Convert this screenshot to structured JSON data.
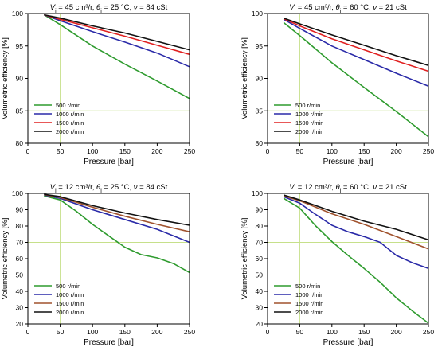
{
  "chart_data": [
    {
      "type": "line",
      "title_parts": {
        "v": "V",
        "v_sub": "i",
        "eq1": " = 45 cm³/r,  ",
        "theta": "θ",
        "theta_sub": "i",
        "eq2": " = 25 °C,  ",
        "nu": "ν",
        "eq3": " = 84 cSt"
      },
      "xlabel": "Pressure [bar]",
      "ylabel": "Volumetric efficiency [%]",
      "xlim": [
        0,
        250
      ],
      "ylim": [
        80,
        100
      ],
      "xticks": [
        0,
        50,
        100,
        150,
        200,
        250
      ],
      "yticks": [
        80,
        85,
        90,
        95,
        100
      ],
      "ref_lines": {
        "x": 50,
        "y": 85
      },
      "legend_position": "bottom-left",
      "series": [
        {
          "name": "500 r/min",
          "color": "#2e9b2e",
          "x": [
            25,
            50,
            100,
            150,
            200,
            250
          ],
          "y": [
            99.8,
            98.3,
            95.0,
            92.2,
            89.6,
            86.9
          ]
        },
        {
          "name": "1000 r/min",
          "color": "#2a2aa8",
          "x": [
            25,
            50,
            100,
            150,
            200,
            250
          ],
          "y": [
            99.8,
            98.9,
            97.2,
            95.6,
            93.9,
            91.8
          ]
        },
        {
          "name": "1500 r/min",
          "color": "#e02020",
          "x": [
            25,
            50,
            100,
            150,
            200,
            250
          ],
          "y": [
            99.8,
            99.1,
            97.8,
            96.5,
            95.1,
            93.7
          ]
        },
        {
          "name": "2000 r/min",
          "color": "#111111",
          "x": [
            25,
            50,
            100,
            150,
            200,
            250
          ],
          "y": [
            99.8,
            99.3,
            98.1,
            97.0,
            95.7,
            94.4
          ]
        }
      ]
    },
    {
      "type": "line",
      "title_parts": {
        "v": "V",
        "v_sub": "i",
        "eq1": " = 45 cm³/r,  ",
        "theta": "θ",
        "theta_sub": "i",
        "eq2": " = 60 °C,  ",
        "nu": "ν",
        "eq3": " = 21 cSt"
      },
      "xlabel": "Pressure [bar]",
      "ylabel": "Volumetric efficiency [%]",
      "xlim": [
        0,
        250
      ],
      "ylim": [
        80,
        100
      ],
      "xticks": [
        0,
        50,
        100,
        150,
        200,
        250
      ],
      "yticks": [
        80,
        85,
        90,
        95,
        100
      ],
      "ref_lines": {
        "x": 50,
        "y": 85
      },
      "legend_position": "bottom-left",
      "series": [
        {
          "name": "500 r/min",
          "color": "#2e9b2e",
          "x": [
            25,
            50,
            100,
            150,
            200,
            250
          ],
          "y": [
            98.6,
            96.6,
            92.4,
            88.6,
            84.9,
            81.0
          ]
        },
        {
          "name": "1000 r/min",
          "color": "#2a2aa8",
          "x": [
            25,
            50,
            100,
            150,
            200,
            250
          ],
          "y": [
            99.1,
            97.7,
            95.0,
            92.9,
            90.8,
            88.8
          ]
        },
        {
          "name": "1500 r/min",
          "color": "#e02020",
          "x": [
            25,
            50,
            100,
            150,
            200,
            250
          ],
          "y": [
            99.2,
            98.1,
            96.1,
            94.4,
            92.7,
            91.1
          ]
        },
        {
          "name": "2000 r/min",
          "color": "#111111",
          "x": [
            25,
            50,
            100,
            150,
            200,
            250
          ],
          "y": [
            99.3,
            98.4,
            96.7,
            95.1,
            93.5,
            92.0
          ]
        }
      ]
    },
    {
      "type": "line",
      "title_parts": {
        "v": "V",
        "v_sub": "i",
        "eq1": " = 12 cm³/r,  ",
        "theta": "θ",
        "theta_sub": "i",
        "eq2": " = 25 °C,  ",
        "nu": "ν",
        "eq3": " = 84 cSt"
      },
      "xlabel": "Pressure [bar]",
      "ylabel": "Volumetric efficiency [%]",
      "xlim": [
        0,
        250
      ],
      "ylim": [
        20,
        100
      ],
      "xticks": [
        0,
        50,
        100,
        150,
        200,
        250
      ],
      "yticks": [
        20,
        30,
        40,
        50,
        60,
        70,
        80,
        90,
        100
      ],
      "ref_lines": {
        "x": 50,
        "y": 70
      },
      "legend_position": "bottom-left",
      "series": [
        {
          "name": "500 r/min",
          "color": "#2e9b2e",
          "x": [
            25,
            50,
            75,
            100,
            125,
            150,
            175,
            200,
            225,
            250
          ],
          "y": [
            98.5,
            96.0,
            89.0,
            81.0,
            74.0,
            67.0,
            62.5,
            60.5,
            57.0,
            51.5
          ]
        },
        {
          "name": "1000 r/min",
          "color": "#2a2aa8",
          "x": [
            25,
            50,
            100,
            150,
            200,
            250
          ],
          "y": [
            99.0,
            97.0,
            90.0,
            84.0,
            78.0,
            70.0
          ]
        },
        {
          "name": "1500 r/min",
          "color": "#a0522d",
          "x": [
            25,
            50,
            100,
            150,
            200,
            250
          ],
          "y": [
            99.2,
            97.5,
            91.5,
            86.0,
            81.0,
            76.5
          ]
        },
        {
          "name": "2000 r/min",
          "color": "#111111",
          "x": [
            25,
            50,
            100,
            150,
            200,
            250
          ],
          "y": [
            99.4,
            98.0,
            92.5,
            88.0,
            84.0,
            80.5
          ]
        }
      ]
    },
    {
      "type": "line",
      "title_parts": {
        "v": "V",
        "v_sub": "i",
        "eq1": " = 12 cm³/r,  ",
        "theta": "θ",
        "theta_sub": "i",
        "eq2": " = 60 °C,  ",
        "nu": "ν",
        "eq3": " = 21 cSt"
      },
      "xlabel": "Pressure [bar]",
      "ylabel": "Volumetric efficiency [%]",
      "xlim": [
        0,
        250
      ],
      "ylim": [
        20,
        100
      ],
      "xticks": [
        0,
        50,
        100,
        150,
        200,
        250
      ],
      "yticks": [
        20,
        30,
        40,
        50,
        60,
        70,
        80,
        90,
        100
      ],
      "ref_lines": {
        "x": 50,
        "y": 70
      },
      "legend_position": "bottom-left",
      "series": [
        {
          "name": "500 r/min",
          "color": "#2e9b2e",
          "x": [
            25,
            50,
            75,
            100,
            125,
            150,
            175,
            200,
            225,
            250
          ],
          "y": [
            97.0,
            91.0,
            80.0,
            70.5,
            62.0,
            54.0,
            45.5,
            36.0,
            28.0,
            20.5
          ]
        },
        {
          "name": "1000 r/min",
          "color": "#2a2aa8",
          "x": [
            25,
            50,
            75,
            100,
            125,
            150,
            175,
            200,
            225,
            250
          ],
          "y": [
            98.0,
            94.0,
            87.0,
            80.5,
            76.5,
            73.5,
            70.0,
            62.0,
            57.5,
            54.0
          ]
        },
        {
          "name": "1500 r/min",
          "color": "#a0522d",
          "x": [
            25,
            50,
            100,
            150,
            200,
            250
          ],
          "y": [
            98.5,
            95.5,
            87.5,
            81.0,
            73.5,
            66.0
          ]
        },
        {
          "name": "2000 r/min",
          "color": "#111111",
          "x": [
            25,
            50,
            100,
            150,
            200,
            250
          ],
          "y": [
            99.0,
            96.0,
            89.0,
            83.0,
            78.0,
            71.5
          ]
        }
      ]
    }
  ]
}
